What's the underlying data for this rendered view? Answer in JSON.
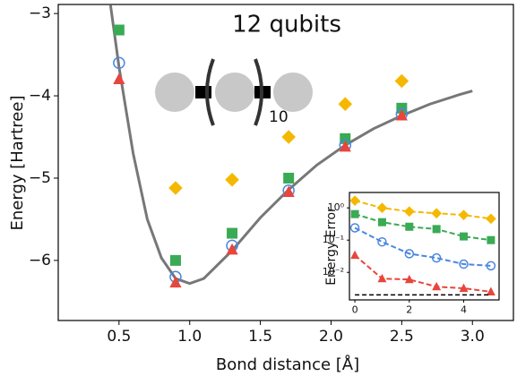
{
  "chart_data": [
    {
      "type": "scatter",
      "annotation": "12 qubits",
      "subscript": "10",
      "xlabel": "Bond distance [Å]",
      "ylabel": "Energy [Hartree]",
      "xlim": [
        0.07,
        3.29
      ],
      "ylim": [
        -6.73,
        -2.89
      ],
      "xticks": [
        0.5,
        1.0,
        1.5,
        2.0,
        2.5,
        3.0
      ],
      "xtick_labels": [
        "0.5",
        "1.0",
        "1.5",
        "2.0",
        "2.5",
        "3.0"
      ],
      "yticks": [
        {
          "value": -3,
          "label": "−3"
        },
        {
          "value": -4,
          "label": "−4"
        },
        {
          "value": -5,
          "label": "−5"
        },
        {
          "value": -6,
          "label": "−6"
        }
      ],
      "series": [
        {
          "color": "#777777",
          "marker": "line",
          "x": [
            0.44,
            0.5,
            0.6,
            0.7,
            0.8,
            0.9,
            1.0,
            1.1,
            1.3,
            1.5,
            1.7,
            1.9,
            2.1,
            2.3,
            2.5,
            2.7,
            2.9,
            3.0
          ],
          "values": [
            -2.9,
            -3.65,
            -4.7,
            -5.5,
            -5.97,
            -6.22,
            -6.28,
            -6.22,
            -5.88,
            -5.48,
            -5.14,
            -4.84,
            -4.6,
            -4.4,
            -4.24,
            -4.1,
            -3.99,
            -3.94
          ]
        },
        {
          "color": "#f5b800",
          "marker": "diamond",
          "x": [
            0.9,
            1.3,
            1.7,
            2.1,
            2.5
          ],
          "values": [
            -5.12,
            -5.02,
            -4.5,
            -4.1,
            -3.82
          ]
        },
        {
          "color": "#3aaa55",
          "marker": "square",
          "x": [
            0.5,
            0.9,
            1.3,
            1.7,
            2.1,
            2.5
          ],
          "values": [
            -3.2,
            -6.0,
            -5.67,
            -5.0,
            -4.52,
            -4.15
          ]
        },
        {
          "color": "#4a86e0",
          "marker": "circle",
          "x": [
            0.5,
            0.9,
            1.3,
            1.7,
            2.1,
            2.5
          ],
          "values": [
            -3.6,
            -6.2,
            -5.82,
            -5.15,
            -4.6,
            -4.22
          ]
        },
        {
          "color": "#e8453c",
          "marker": "triangle",
          "x": [
            0.5,
            0.9,
            1.3,
            1.7,
            2.1,
            2.5
          ],
          "values": [
            -3.8,
            -6.27,
            -5.87,
            -5.17,
            -4.62,
            -4.24
          ]
        }
      ]
    },
    {
      "type": "line",
      "ylabel": "Energy Error",
      "log_y": true,
      "linestyle": "dashed",
      "xlim": [
        -0.2,
        5.3
      ],
      "ylim": [
        0.0014,
        3
      ],
      "xticks": [
        0,
        2,
        4
      ],
      "yticks": [
        {
          "value": 1,
          "label": "10⁰"
        },
        {
          "value": 0.1,
          "label": "10⁻¹"
        },
        {
          "value": 0.01,
          "label": "10⁻²"
        }
      ],
      "series": [
        {
          "color": "#f5b800",
          "marker": "diamond",
          "x": [
            0,
            1,
            2,
            3,
            4,
            5
          ],
          "values": [
            1.67,
            1.0,
            0.77,
            0.68,
            0.6,
            0.46
          ]
        },
        {
          "color": "#3aaa55",
          "marker": "square",
          "x": [
            0,
            1,
            2,
            3,
            4,
            5
          ],
          "values": [
            0.64,
            0.36,
            0.26,
            0.22,
            0.13,
            0.1
          ]
        },
        {
          "color": "#4a86e0",
          "marker": "circle",
          "x": [
            0,
            1,
            2,
            3,
            4,
            5
          ],
          "values": [
            0.24,
            0.088,
            0.038,
            0.028,
            0.018,
            0.016
          ]
        },
        {
          "color": "#e8453c",
          "marker": "triangle",
          "x": [
            0,
            1,
            2,
            3,
            4,
            5
          ],
          "values": [
            0.034,
            0.0064,
            0.006,
            0.0036,
            0.0032,
            0.0025
          ]
        },
        {
          "color": "#000000",
          "marker": "line",
          "x": [
            0,
            5
          ],
          "values": [
            0.002,
            0.002
          ]
        }
      ]
    }
  ]
}
